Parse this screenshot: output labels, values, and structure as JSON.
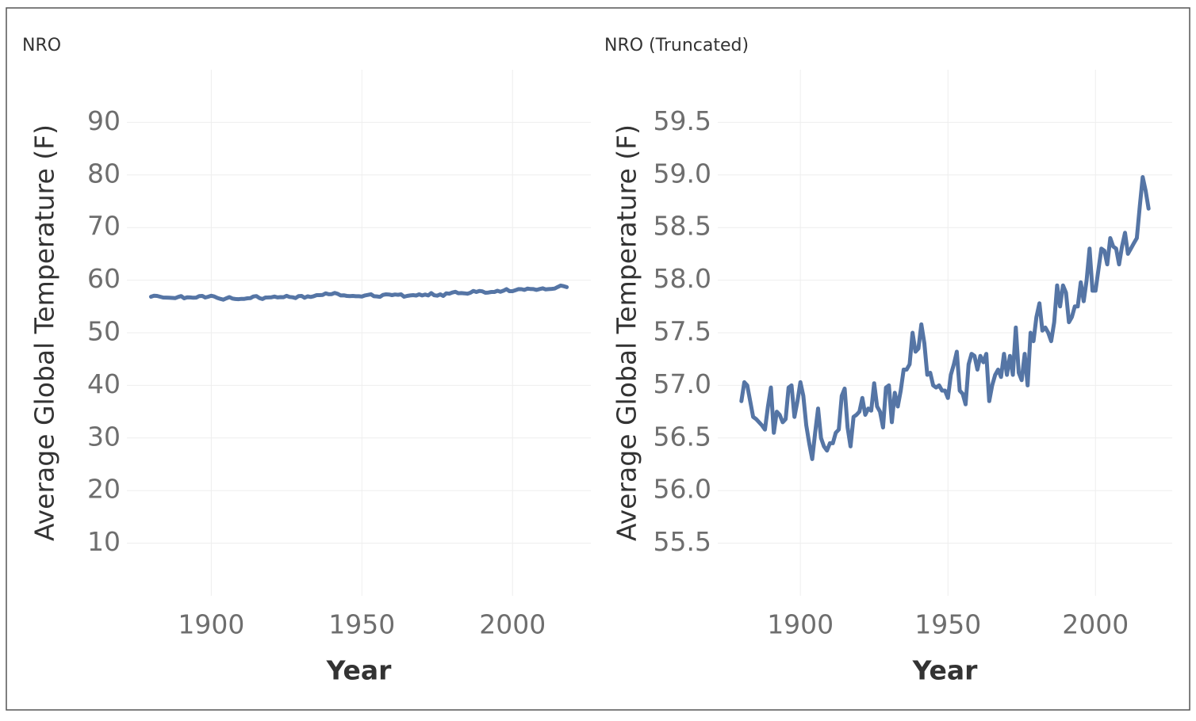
{
  "chart_data": [
    {
      "type": "line",
      "title": "NRO",
      "x_label": "Year",
      "y_label": "Average Global Temperature (F)",
      "color": "#5575a5",
      "grid": true,
      "xlim": [
        1872,
        2026
      ],
      "xticks": [
        1900,
        1950,
        2000
      ],
      "ylim": [
        0,
        100
      ],
      "yticks": [
        10,
        20,
        30,
        40,
        50,
        60,
        70,
        80,
        90
      ],
      "x": [
        1880,
        1881,
        1882,
        1883,
        1884,
        1885,
        1886,
        1887,
        1888,
        1889,
        1890,
        1891,
        1892,
        1893,
        1894,
        1895,
        1896,
        1897,
        1898,
        1899,
        1900,
        1901,
        1902,
        1903,
        1904,
        1905,
        1906,
        1907,
        1908,
        1909,
        1910,
        1911,
        1912,
        1913,
        1914,
        1915,
        1916,
        1917,
        1918,
        1919,
        1920,
        1921,
        1922,
        1923,
        1924,
        1925,
        1926,
        1927,
        1928,
        1929,
        1930,
        1931,
        1932,
        1933,
        1934,
        1935,
        1936,
        1937,
        1938,
        1939,
        1940,
        1941,
        1942,
        1943,
        1944,
        1945,
        1946,
        1947,
        1948,
        1949,
        1950,
        1951,
        1952,
        1953,
        1954,
        1955,
        1956,
        1957,
        1958,
        1959,
        1960,
        1961,
        1962,
        1963,
        1964,
        1965,
        1966,
        1967,
        1968,
        1969,
        1970,
        1971,
        1972,
        1973,
        1974,
        1975,
        1976,
        1977,
        1978,
        1979,
        1980,
        1981,
        1982,
        1983,
        1984,
        1985,
        1986,
        1987,
        1988,
        1989,
        1990,
        1991,
        1992,
        1993,
        1994,
        1995,
        1996,
        1997,
        1998,
        1999,
        2000,
        2001,
        2002,
        2003,
        2004,
        2005,
        2006,
        2007,
        2008,
        2009,
        2010,
        2011,
        2012,
        2013,
        2014,
        2015,
        2016,
        2017,
        2018
      ],
      "values": [
        56.85,
        57.03,
        57.0,
        56.85,
        56.7,
        56.68,
        56.65,
        56.62,
        56.58,
        56.8,
        56.98,
        56.55,
        56.75,
        56.72,
        56.65,
        56.68,
        56.98,
        57.0,
        56.7,
        56.85,
        57.03,
        56.9,
        56.62,
        56.45,
        56.3,
        56.55,
        56.78,
        56.5,
        56.42,
        56.38,
        56.45,
        56.45,
        56.55,
        56.58,
        56.9,
        56.97,
        56.6,
        56.42,
        56.7,
        56.72,
        56.75,
        56.88,
        56.72,
        56.78,
        56.76,
        57.02,
        56.8,
        56.75,
        56.6,
        56.98,
        57.0,
        56.65,
        56.93,
        56.8,
        56.95,
        57.15,
        57.15,
        57.2,
        57.5,
        57.32,
        57.35,
        57.58,
        57.4,
        57.1,
        57.12,
        57.0,
        56.98,
        57.0,
        56.95,
        56.95,
        56.88,
        57.1,
        57.2,
        57.32,
        56.95,
        56.92,
        56.82,
        57.2,
        57.3,
        57.28,
        57.15,
        57.28,
        57.22,
        57.3,
        56.85,
        57.0,
        57.1,
        57.15,
        57.08,
        57.3,
        57.1,
        57.28,
        57.1,
        57.55,
        57.12,
        57.05,
        57.3,
        57.0,
        57.5,
        57.42,
        57.65,
        57.78,
        57.52,
        57.55,
        57.5,
        57.42,
        57.6,
        57.95,
        57.75,
        57.95,
        57.88,
        57.6,
        57.65,
        57.75,
        57.75,
        57.98,
        57.8,
        58.0,
        58.3,
        57.9,
        57.9,
        58.1,
        58.3,
        58.28,
        58.15,
        58.4,
        58.32,
        58.3,
        58.15,
        58.32,
        58.45,
        58.25,
        58.3,
        58.35,
        58.4,
        58.7,
        58.98,
        58.85,
        58.68
      ]
    },
    {
      "type": "line",
      "title": "NRO (Truncated)",
      "x_label": "Year",
      "y_label": "Average Global Temperature (F)",
      "color": "#5575a5",
      "grid": true,
      "xlim": [
        1872,
        2026
      ],
      "xticks": [
        1900,
        1950,
        2000
      ],
      "ylim": [
        55,
        60
      ],
      "yticks": [
        55.5,
        {
          "value": 56,
          "label": "56.0"
        },
        56.5,
        {
          "value": 57,
          "label": "57.0"
        },
        57.5,
        {
          "value": 58,
          "label": "58.0"
        },
        58.5,
        {
          "value": 59,
          "label": "59.0"
        },
        59.5
      ],
      "x": [
        1880,
        1881,
        1882,
        1883,
        1884,
        1885,
        1886,
        1887,
        1888,
        1889,
        1890,
        1891,
        1892,
        1893,
        1894,
        1895,
        1896,
        1897,
        1898,
        1899,
        1900,
        1901,
        1902,
        1903,
        1904,
        1905,
        1906,
        1907,
        1908,
        1909,
        1910,
        1911,
        1912,
        1913,
        1914,
        1915,
        1916,
        1917,
        1918,
        1919,
        1920,
        1921,
        1922,
        1923,
        1924,
        1925,
        1926,
        1927,
        1928,
        1929,
        1930,
        1931,
        1932,
        1933,
        1934,
        1935,
        1936,
        1937,
        1938,
        1939,
        1940,
        1941,
        1942,
        1943,
        1944,
        1945,
        1946,
        1947,
        1948,
        1949,
        1950,
        1951,
        1952,
        1953,
        1954,
        1955,
        1956,
        1957,
        1958,
        1959,
        1960,
        1961,
        1962,
        1963,
        1964,
        1965,
        1966,
        1967,
        1968,
        1969,
        1970,
        1971,
        1972,
        1973,
        1974,
        1975,
        1976,
        1977,
        1978,
        1979,
        1980,
        1981,
        1982,
        1983,
        1984,
        1985,
        1986,
        1987,
        1988,
        1989,
        1990,
        1991,
        1992,
        1993,
        1994,
        1995,
        1996,
        1997,
        1998,
        1999,
        2000,
        2001,
        2002,
        2003,
        2004,
        2005,
        2006,
        2007,
        2008,
        2009,
        2010,
        2011,
        2012,
        2013,
        2014,
        2015,
        2016,
        2017,
        2018
      ],
      "values": [
        56.85,
        57.03,
        57.0,
        56.85,
        56.7,
        56.68,
        56.65,
        56.62,
        56.58,
        56.8,
        56.98,
        56.55,
        56.75,
        56.72,
        56.65,
        56.68,
        56.98,
        57.0,
        56.7,
        56.85,
        57.03,
        56.9,
        56.62,
        56.45,
        56.3,
        56.55,
        56.78,
        56.5,
        56.42,
        56.38,
        56.45,
        56.45,
        56.55,
        56.58,
        56.9,
        56.97,
        56.6,
        56.42,
        56.7,
        56.72,
        56.75,
        56.88,
        56.72,
        56.78,
        56.76,
        57.02,
        56.8,
        56.75,
        56.6,
        56.98,
        57.0,
        56.65,
        56.93,
        56.8,
        56.95,
        57.15,
        57.15,
        57.2,
        57.5,
        57.32,
        57.35,
        57.58,
        57.4,
        57.1,
        57.12,
        57.0,
        56.98,
        57.0,
        56.95,
        56.95,
        56.88,
        57.1,
        57.2,
        57.32,
        56.95,
        56.92,
        56.82,
        57.2,
        57.3,
        57.28,
        57.15,
        57.28,
        57.22,
        57.3,
        56.85,
        57.0,
        57.1,
        57.15,
        57.08,
        57.3,
        57.1,
        57.28,
        57.1,
        57.55,
        57.12,
        57.05,
        57.3,
        57.0,
        57.5,
        57.42,
        57.65,
        57.78,
        57.52,
        57.55,
        57.5,
        57.42,
        57.6,
        57.95,
        57.75,
        57.95,
        57.88,
        57.6,
        57.65,
        57.75,
        57.75,
        57.98,
        57.8,
        58.0,
        58.3,
        57.9,
        57.9,
        58.1,
        58.3,
        58.28,
        58.15,
        58.4,
        58.32,
        58.3,
        58.15,
        58.32,
        58.45,
        58.25,
        58.3,
        58.35,
        58.4,
        58.7,
        58.98,
        58.85,
        58.68
      ]
    }
  ]
}
